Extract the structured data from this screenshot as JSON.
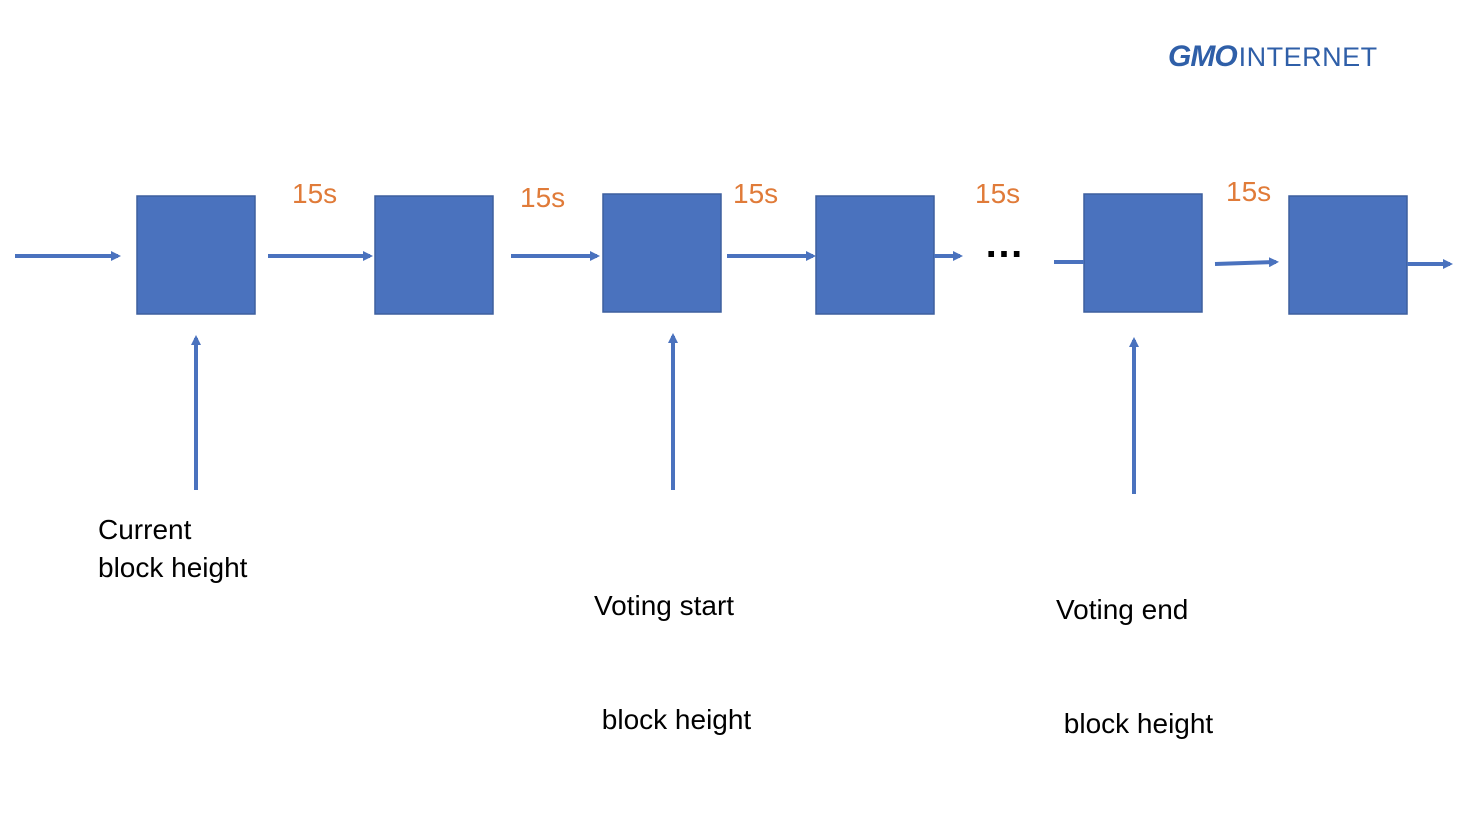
{
  "logo": {
    "brand": "GMO",
    "suffix": "INTERNET",
    "color": "#2f5fa8"
  },
  "colors": {
    "block": "#4a72be",
    "block_border": "#3d5f9e",
    "arrow": "#4a72be",
    "interval_text": "#e07b39"
  },
  "blocks": 6,
  "intervals": [
    "15s",
    "15s",
    "15s",
    "15s",
    "15s"
  ],
  "ellipsis": "…",
  "markers": [
    {
      "line1": "Current",
      "line2": "block height"
    },
    {
      "line1": "Voting start",
      "line2": " block height"
    },
    {
      "line1": "Voting end",
      "line2": " block height"
    }
  ]
}
